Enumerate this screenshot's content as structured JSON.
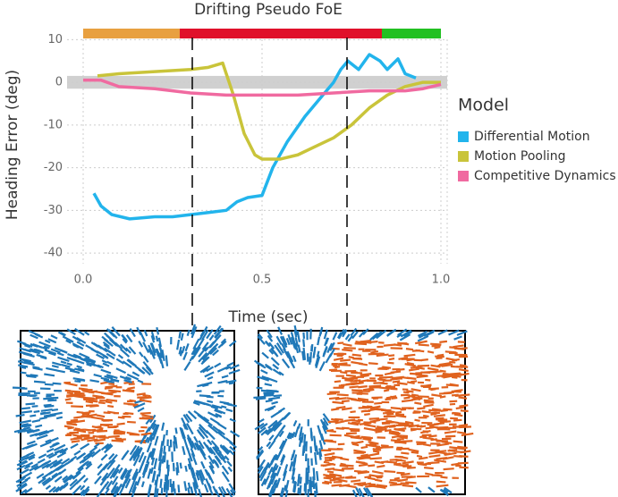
{
  "chart_data": {
    "type": "line",
    "title": "Drifting Pseudo FoE",
    "x_label": "Time (sec)",
    "y_label": "Heading Error (deg)",
    "xlim": [
      -0.045,
      1.0175
    ],
    "ylim": [
      -42.5,
      13
    ],
    "xticks": [
      {
        "value": 0,
        "label": "0.0"
      },
      0.5,
      {
        "value": 1,
        "label": "1.0"
      }
    ],
    "yticks": [
      10,
      0,
      -10,
      -20,
      -30,
      -40
    ],
    "grid": true,
    "legend_title": "Model",
    "legend_position": "right",
    "phase_bands": [
      {
        "start": 0,
        "end": 0.27,
        "color": "#e8a040"
      },
      {
        "start": 0.27,
        "end": 0.835,
        "color": "#e0102a"
      },
      {
        "start": 0.835,
        "end": 1.0,
        "color": "#22c022"
      }
    ],
    "reference_band": {
      "low": -1.5,
      "high": 1.5,
      "color": "#d0d0d0"
    },
    "markers": [
      0.305,
      0.7375
    ],
    "series": [
      {
        "name": "Differential Motion",
        "color": "#22b4ec",
        "x": [
          0.03,
          0.05,
          0.08,
          0.13,
          0.2,
          0.25,
          0.3,
          0.35,
          0.4,
          0.43,
          0.46,
          0.5,
          0.53,
          0.57,
          0.62,
          0.66,
          0.7,
          0.72,
          0.74,
          0.77,
          0.8,
          0.83,
          0.85,
          0.88,
          0.9,
          0.93
        ],
        "values": [
          -26,
          -29,
          -31,
          -32,
          -31.5,
          -31.5,
          -31,
          -30.5,
          -30,
          -28,
          -27,
          -26.5,
          -20,
          -14,
          -8,
          -4,
          0,
          3,
          5,
          3,
          6.5,
          5,
          3,
          5.5,
          2,
          1
        ]
      },
      {
        "name": "Motion Pooling",
        "color": "#c9c43a",
        "x": [
          0.04,
          0.1,
          0.2,
          0.3,
          0.35,
          0.39,
          0.42,
          0.45,
          0.48,
          0.5,
          0.55,
          0.6,
          0.65,
          0.7,
          0.75,
          0.8,
          0.85,
          0.9,
          0.95,
          1.0
        ],
        "values": [
          1.5,
          2,
          2.5,
          3,
          3.5,
          4.5,
          -3,
          -12,
          -17,
          -18,
          -18,
          -17,
          -15,
          -13,
          -10,
          -6,
          -3,
          -1,
          0,
          0
        ]
      },
      {
        "name": "Competitive Dynamics",
        "color": "#f06aa0",
        "x": [
          0.0,
          0.05,
          0.1,
          0.2,
          0.3,
          0.4,
          0.5,
          0.6,
          0.7,
          0.8,
          0.9,
          0.95,
          1.0
        ],
        "values": [
          0.5,
          0.5,
          -1,
          -1.5,
          -2.5,
          -3,
          -3,
          -3,
          -2.5,
          -2,
          -2,
          -1.5,
          -0.5
        ]
      }
    ]
  }
}
